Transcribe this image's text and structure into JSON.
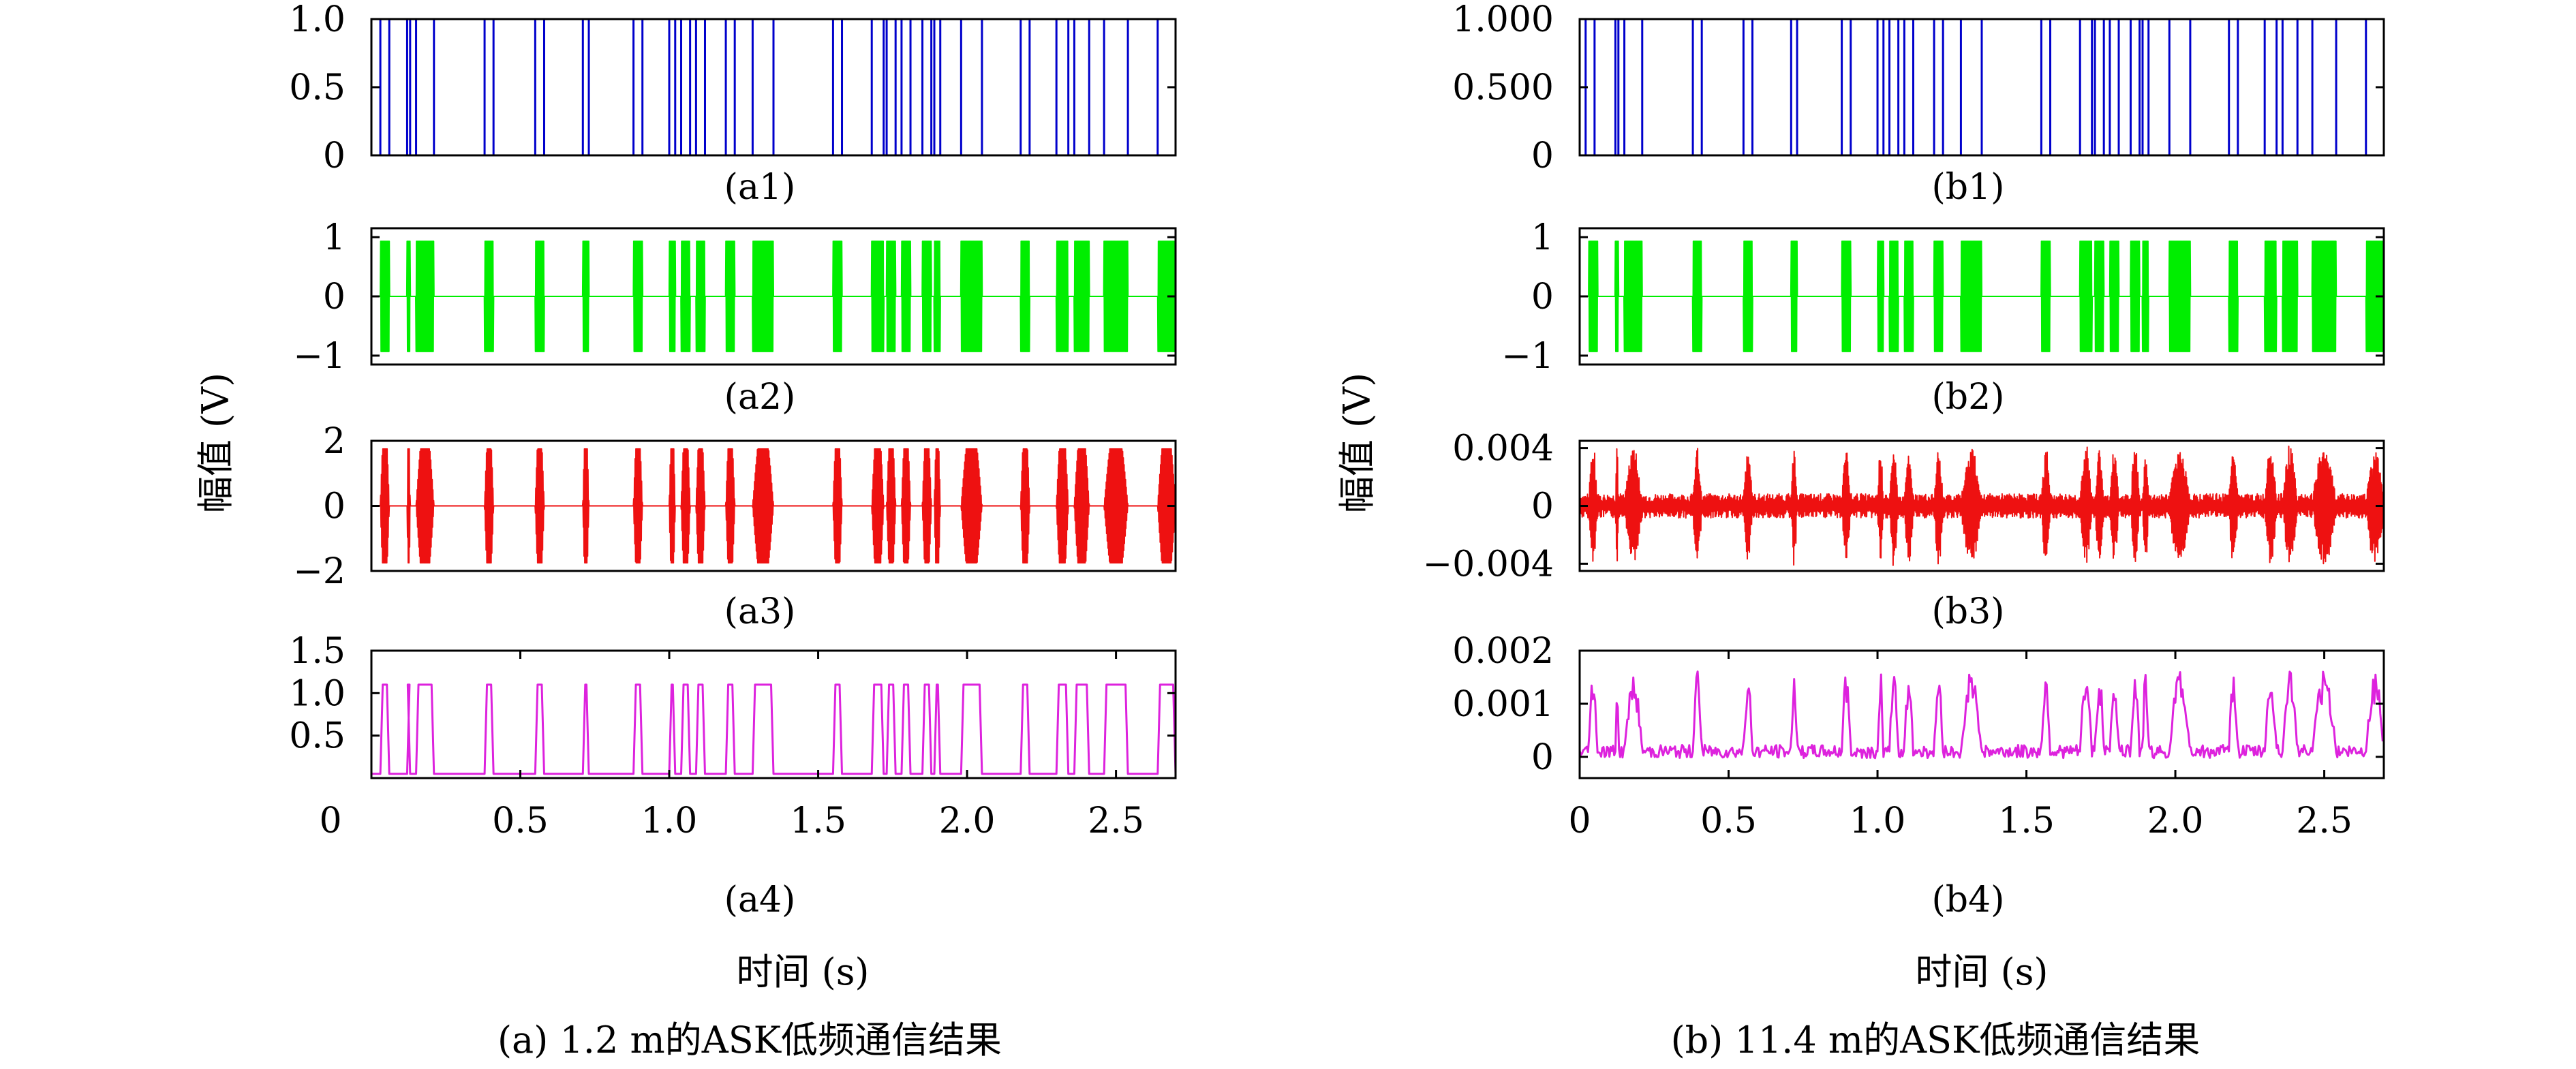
{
  "figure": {
    "captions": [
      "(a) 1.2 m的ASK低频通信结果",
      "(b) 11.4 m的ASK低频通信结果"
    ],
    "ylabel": "幅值 (V)",
    "xlabel": "时间 (s)"
  },
  "chart_data": [
    {
      "id": "a1",
      "type": "line",
      "label": "(a1)",
      "color": "#0000cc",
      "kind": "bits",
      "xlim": [
        0,
        2.7
      ],
      "ylim": [
        0,
        1
      ],
      "yticks": [
        0,
        0.5,
        1.0
      ],
      "ytick_labels": [
        "0",
        "0.5",
        "1.0"
      ],
      "xticks": [],
      "xtick_labels": [],
      "series": [
        {
          "pulses": [
            [
              0.03,
              0.06
            ],
            [
              0.12,
              0.13
            ],
            [
              0.15,
              0.21
            ],
            [
              0.38,
              0.41
            ],
            [
              0.55,
              0.58
            ],
            [
              0.71,
              0.73
            ],
            [
              0.88,
              0.91
            ],
            [
              1.0,
              1.02
            ],
            [
              1.04,
              1.07
            ],
            [
              1.09,
              1.12
            ],
            [
              1.19,
              1.22
            ],
            [
              1.28,
              1.35
            ],
            [
              1.55,
              1.58
            ],
            [
              1.68,
              1.72
            ],
            [
              1.73,
              1.76
            ],
            [
              1.78,
              1.81
            ],
            [
              1.85,
              1.88
            ],
            [
              1.89,
              1.91
            ],
            [
              1.98,
              2.05
            ],
            [
              2.18,
              2.21
            ],
            [
              2.3,
              2.34
            ],
            [
              2.36,
              2.41
            ],
            [
              2.46,
              2.54
            ],
            [
              2.64,
              2.7
            ]
          ]
        }
      ]
    },
    {
      "id": "a2",
      "type": "line",
      "label": "(a2)",
      "color": "#00ee00",
      "kind": "carrier",
      "xlim": [
        0,
        2.7
      ],
      "ylim": [
        -1.15,
        1.15
      ],
      "amplitude": 0.93,
      "shape": "flat",
      "yticks": [
        -1,
        0,
        1
      ],
      "ytick_labels": [
        "−1",
        "0",
        "1"
      ],
      "xticks": [],
      "xtick_labels": []
    },
    {
      "id": "a3",
      "type": "line",
      "label": "(a3)",
      "color": "#ee1111",
      "kind": "carrier",
      "xlim": [
        0,
        2.7
      ],
      "ylim": [
        -2.0,
        2.0
      ],
      "amplitude": 1.75,
      "shape": "lens",
      "yticks": [
        -2,
        0,
        2
      ],
      "ytick_labels": [
        "−2",
        "0",
        "2"
      ],
      "xticks": [],
      "xtick_labels": []
    },
    {
      "id": "a4",
      "type": "line",
      "label": "(a4)",
      "color": "#dd22dd",
      "kind": "demod",
      "xlim": [
        0,
        2.7
      ],
      "ylim": [
        0,
        1.5
      ],
      "high": 1.1,
      "low": 0.05,
      "yticks": [
        0.5,
        1.0,
        1.5
      ],
      "ytick_labels": [
        "0.5",
        "1.0",
        "1.5"
      ],
      "xticks": [
        0,
        0.5,
        1.0,
        1.5,
        2.0,
        2.5
      ],
      "xtick_labels": [
        "0",
        "0.5",
        "1.0",
        "1.5",
        "2.0",
        "2.5"
      ]
    },
    {
      "id": "b1",
      "type": "line",
      "label": "(b1)",
      "color": "#0000cc",
      "kind": "bits",
      "xlim": [
        0,
        2.7
      ],
      "ylim": [
        0,
        1
      ],
      "yticks": [
        0,
        0.5,
        1.0
      ],
      "ytick_labels": [
        "0",
        "0.500",
        "1.000"
      ],
      "xticks": [],
      "xtick_labels": [],
      "series": [
        {
          "pulses": [
            [
              0.02,
              0.05
            ],
            [
              0.12,
              0.13
            ],
            [
              0.15,
              0.21
            ],
            [
              0.38,
              0.41
            ],
            [
              0.55,
              0.58
            ],
            [
              0.71,
              0.73
            ],
            [
              0.88,
              0.91
            ],
            [
              1.0,
              1.02
            ],
            [
              1.04,
              1.07
            ],
            [
              1.09,
              1.12
            ],
            [
              1.19,
              1.22
            ],
            [
              1.28,
              1.35
            ],
            [
              1.55,
              1.58
            ],
            [
              1.68,
              1.72
            ],
            [
              1.73,
              1.76
            ],
            [
              1.78,
              1.81
            ],
            [
              1.85,
              1.88
            ],
            [
              1.89,
              1.91
            ],
            [
              1.98,
              2.05
            ],
            [
              2.18,
              2.21
            ],
            [
              2.3,
              2.34
            ],
            [
              2.36,
              2.41
            ],
            [
              2.46,
              2.54
            ],
            [
              2.64,
              2.7
            ]
          ]
        }
      ]
    },
    {
      "id": "b2",
      "type": "line",
      "label": "(b2)",
      "color": "#00ee00",
      "kind": "carrier",
      "xlim": [
        0,
        2.7
      ],
      "ylim": [
        -1.15,
        1.15
      ],
      "amplitude": 0.93,
      "shape": "flat",
      "yticks": [
        -1,
        0,
        1
      ],
      "ytick_labels": [
        "−1",
        "0",
        "1"
      ],
      "xticks": [],
      "xtick_labels": []
    },
    {
      "id": "b3",
      "type": "line",
      "label": "(b3)",
      "color": "#ee1111",
      "kind": "noisy",
      "xlim": [
        0,
        2.7
      ],
      "ylim": [
        -0.0045,
        0.0045
      ],
      "amplitude": 0.0037,
      "noise": 0.0006,
      "yticks": [
        -0.004,
        0,
        0.004
      ],
      "ytick_labels": [
        "−0.004",
        "0",
        "0.004"
      ],
      "xticks": [],
      "xtick_labels": []
    },
    {
      "id": "b4",
      "type": "line",
      "label": "(b4)",
      "color": "#dd22dd",
      "kind": "noisydemod",
      "xlim": [
        0,
        2.7
      ],
      "ylim": [
        -0.0004,
        0.002
      ],
      "high": 0.0014,
      "low": 0.0001,
      "yticks": [
        0,
        0.001,
        0.002
      ],
      "ytick_labels": [
        "0",
        "0.001",
        "0.002"
      ],
      "xticks": [
        0,
        0.5,
        1.0,
        1.5,
        2.0,
        2.5
      ],
      "xtick_labels": [
        "0",
        "0.5",
        "1.0",
        "1.5",
        "2.0",
        "2.5"
      ]
    }
  ]
}
